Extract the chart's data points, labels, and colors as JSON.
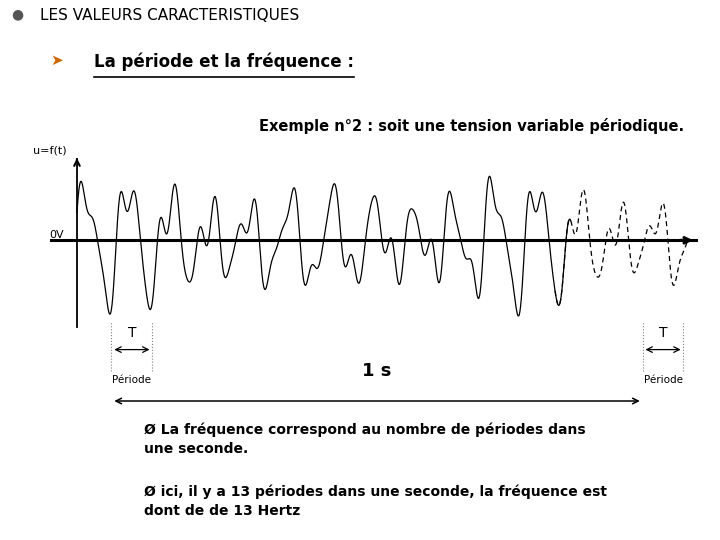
{
  "title_main": "LES VALEURS CARACTERISTIQUES",
  "title_sub": "La période et la fréquence :",
  "subtitle_example": "Exemple n°2 : soit une tension variable périodique.",
  "ylabel": "u=f(t)",
  "xlabel_zero": "0V",
  "bg_color": "#ffffff",
  "text_color": "#000000",
  "wave_color": "#000000",
  "axis_color": "#000000",
  "period_label": "T",
  "periode_text": "Période",
  "one_second_text": "1 s",
  "freq_text1": "Ø La fréquence correspond au nombre de périodes dans\nune seconde.",
  "freq_text2": "Ø ici, il y a 13 périodes dans une seconde, la fréquence est\ndont de de 13 Hertz"
}
